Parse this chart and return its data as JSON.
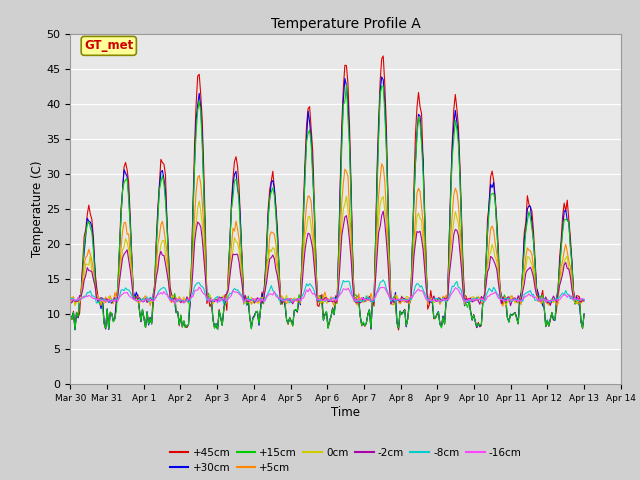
{
  "title": "Temperature Profile A",
  "xlabel": "Time",
  "ylabel": "Temperature (C)",
  "ylim": [
    0,
    50
  ],
  "annotation_text": "GT_met",
  "annotation_bg": "#ffff99",
  "annotation_border": "#888800",
  "annotation_text_color": "#cc0000",
  "x_tick_labels": [
    "Mar 30",
    "Mar 31",
    "Apr 1",
    "Apr 2",
    "Apr 3",
    "Apr 4",
    "Apr 5",
    "Apr 6",
    "Apr 7",
    "Apr 8",
    "Apr 9",
    "Apr 10",
    "Apr 11",
    "Apr 12",
    "Apr 13",
    "Apr 14"
  ],
  "series_colors": {
    "+45cm": "#dd0000",
    "+30cm": "#0000ee",
    "+15cm": "#00cc00",
    "+5cm": "#ff8800",
    "0cm": "#cccc00",
    "-2cm": "#aa00aa",
    "-8cm": "#00cccc",
    "-16cm": "#ff44ff"
  },
  "legend_order": [
    "+45cm",
    "+30cm",
    "+15cm",
    "+5cm",
    "0cm",
    "-2cm",
    "-8cm",
    "-16cm"
  ],
  "peaks_45": [
    25,
    32,
    32,
    44,
    32,
    30,
    40,
    46,
    47,
    41,
    41,
    30,
    26,
    26
  ],
  "base_night": 12.0,
  "n_points": 336
}
